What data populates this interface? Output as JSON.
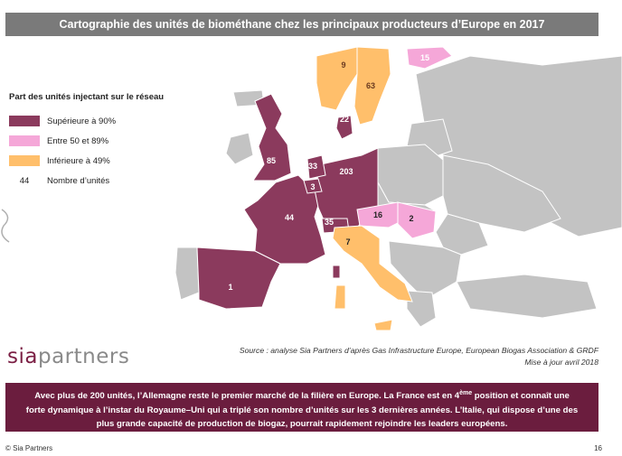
{
  "title": "Cartographie des unités de biométhane chez les principaux producteurs d’Europe en 2017",
  "legend": {
    "title": "Part des unités injectant sur le réseau",
    "items": [
      {
        "label": "Supérieure à 90%",
        "color": "#8b3a5d"
      },
      {
        "label": "Entre 50 et 89%",
        "color": "#f5a7d8"
      },
      {
        "label": "Inférieure à 49%",
        "color": "#ffbf6b"
      }
    ],
    "count_sample": "44",
    "count_label": "Nombre d’unités"
  },
  "countries": [
    {
      "name": "France",
      "units": "44",
      "category": "high"
    },
    {
      "name": "Royaume-Uni",
      "units": "85",
      "category": "high"
    },
    {
      "name": "Allemagne",
      "units": "203",
      "category": "high"
    },
    {
      "name": "Pays-Bas",
      "units": "33",
      "category": "high"
    },
    {
      "name": "Belgique",
      "units": "3",
      "category": "high"
    },
    {
      "name": "Suisse",
      "units": "35",
      "category": "high"
    },
    {
      "name": "Danemark",
      "units": "22",
      "category": "high"
    },
    {
      "name": "Espagne",
      "units": "1",
      "category": "high"
    },
    {
      "name": "Italie",
      "units": "7",
      "category": "low"
    },
    {
      "name": "Autriche",
      "units": "16",
      "category": "mid"
    },
    {
      "name": "Hongrie",
      "units": "2",
      "category": "mid"
    },
    {
      "name": "Finlande",
      "units": "15",
      "category": "mid"
    },
    {
      "name": "Norvège",
      "units": "9",
      "category": "low"
    },
    {
      "name": "Suède",
      "units": "63",
      "category": "low"
    }
  ],
  "colors": {
    "high": "#8b3a5d",
    "mid": "#f5a7d8",
    "low": "#ffbf6b",
    "other": "#c3c3c3"
  },
  "logo": {
    "part1": "sia",
    "part2": "partners"
  },
  "source": "Source : analyse Sia Partners d’après Gas Infrastructure Europe, European Biogas Association & GRDF",
  "update": "Mise à jour avril 2018",
  "banner": {
    "line1_a": "Avec plus de 200 unités, l’Allemagne reste le premier marché de la filière en Europe. La France est en 4",
    "line1_sup": "ème",
    "line1_b": " position et connaît une",
    "line2": "forte dynamique à l’instar du Royaume–Uni qui a triplé son nombre d’unités sur les 3 dernières années. L’Italie, qui dispose d’une des",
    "line3": "plus grande capacité de production de biogaz, pourrait rapidement rejoindre les leaders européens."
  },
  "footer": {
    "copyright": "© Sia Partners",
    "page": "16"
  }
}
